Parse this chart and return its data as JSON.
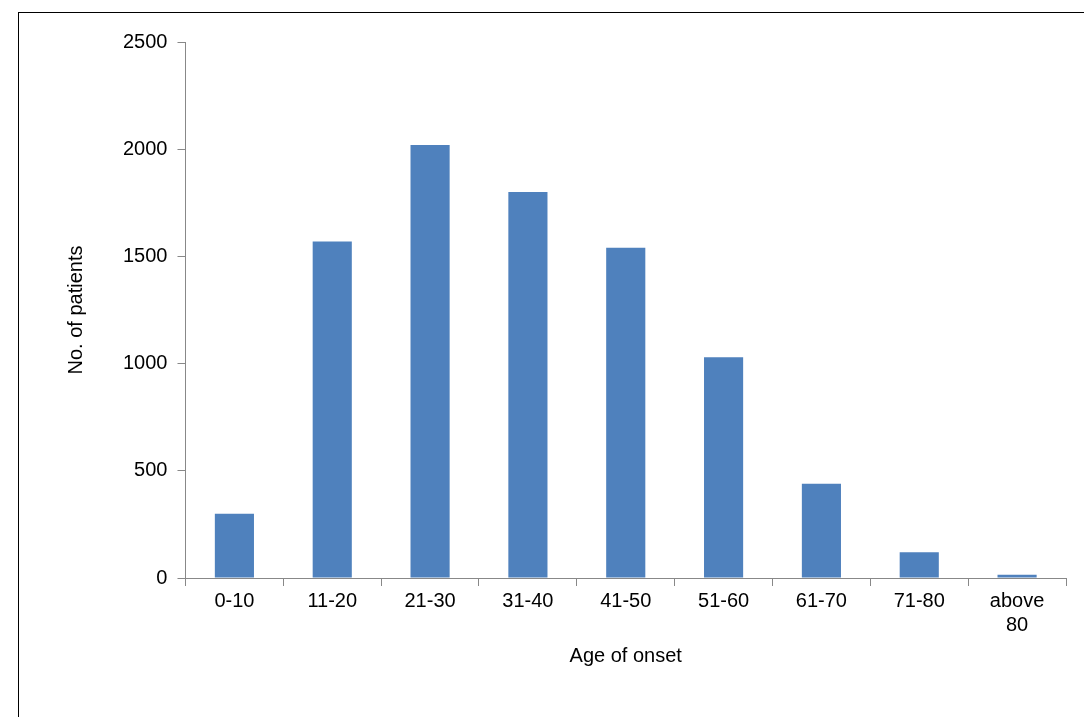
{
  "chart_data": {
    "type": "bar",
    "xlabel": "Age of onset",
    "ylabel": "No. of patients",
    "categories": [
      "0-10",
      "11-20",
      "21-30",
      "31-40",
      "41-50",
      "51-60",
      "61-70",
      "71-80",
      "above 80"
    ],
    "values": [
      300,
      1570,
      2020,
      1800,
      1540,
      1030,
      440,
      120,
      15
    ],
    "color": "#4f81bd",
    "ylim": [
      0,
      2500
    ],
    "yticks": [
      0,
      500,
      1000,
      1500,
      2000,
      2500
    ],
    "grid": false,
    "legend": false
  }
}
